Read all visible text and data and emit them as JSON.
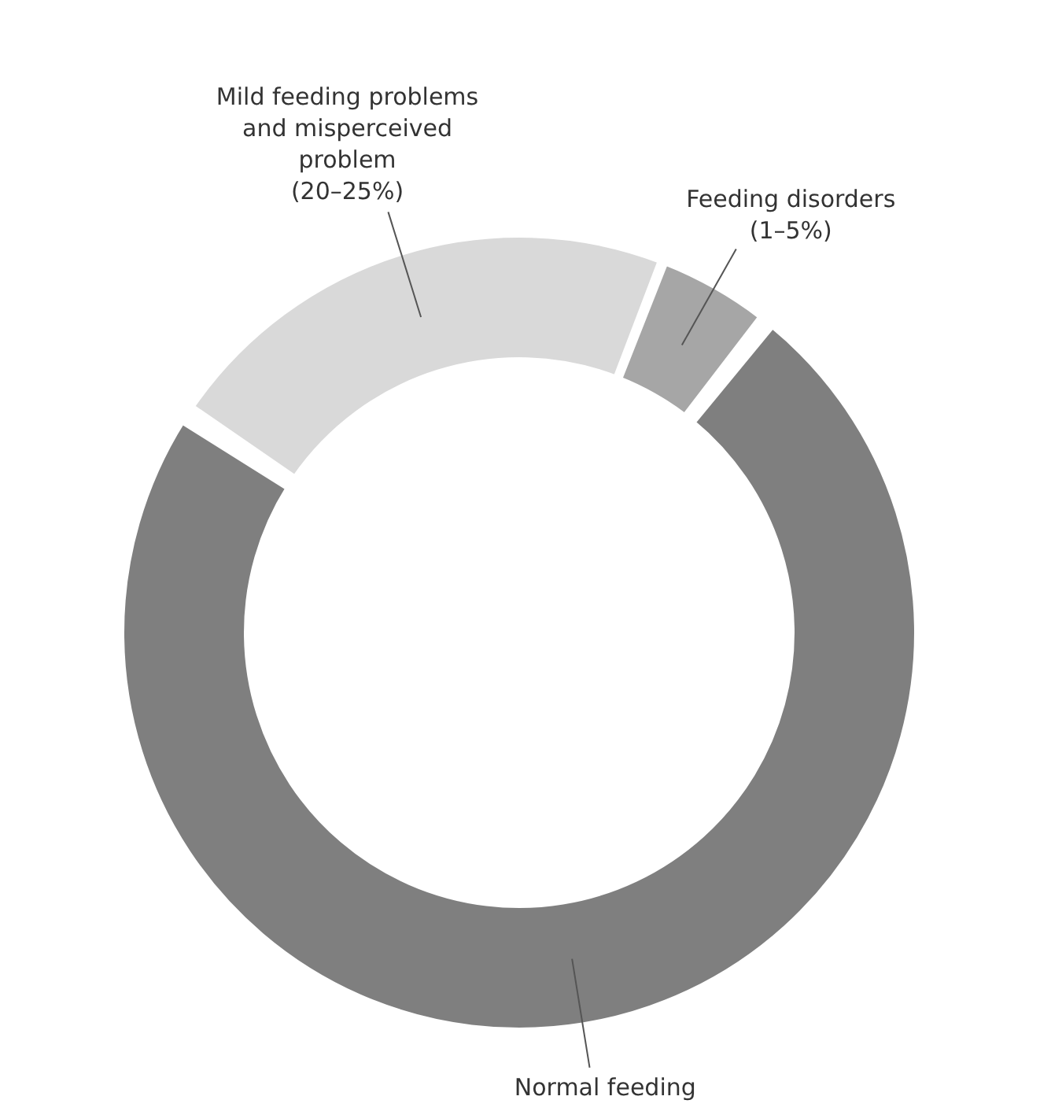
{
  "chart_data": {
    "type": "donut",
    "categories": [
      "Mild feeding problems and misperceived problem (20–25%)",
      "Feeding disorders (1–5%)",
      "Normal feeding"
    ],
    "values": [
      21.5,
      4.5,
      74
    ],
    "colors": [
      "#d9d9d9",
      "#a6a6a6",
      "#7f7f7f"
    ],
    "legend": false
  }
}
